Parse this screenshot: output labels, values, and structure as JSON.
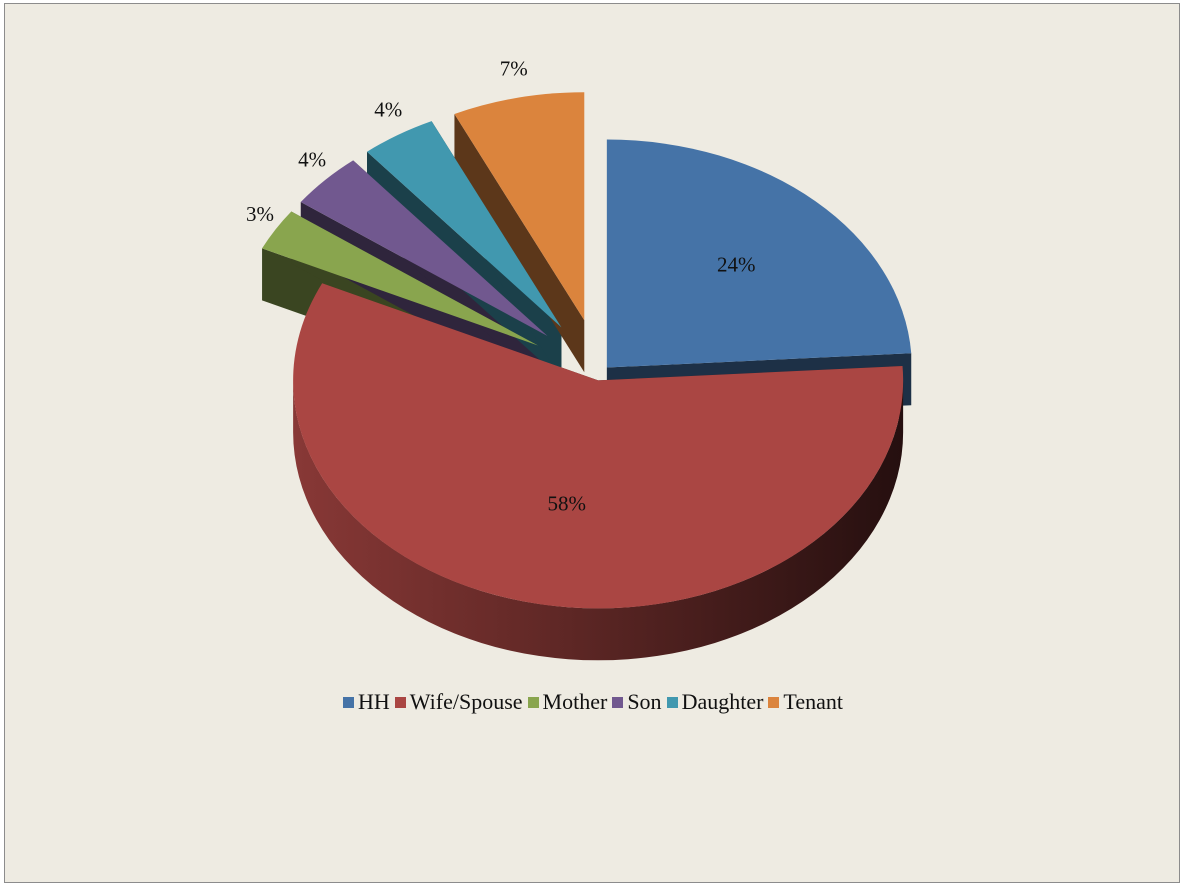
{
  "chart_data": {
    "type": "pie",
    "style": "3d-exploded",
    "title": "",
    "legend_position": "bottom",
    "slices": [
      {
        "label": "HH",
        "value": 24,
        "value_label": "24%",
        "color": "#4573a7"
      },
      {
        "label": "Wife/Spouse",
        "value": 58,
        "value_label": "58%",
        "color": "#aa4643"
      },
      {
        "label": "Mother",
        "value": 3,
        "value_label": "3%",
        "color": "#89a54e"
      },
      {
        "label": "Son",
        "value": 4,
        "value_label": "4%",
        "color": "#71588f"
      },
      {
        "label": "Daughter",
        "value": 4,
        "value_label": "4%",
        "color": "#4198af"
      },
      {
        "label": "Tenant",
        "value": 7,
        "value_label": "7%",
        "color": "#db843d"
      }
    ]
  },
  "colors": {
    "background": "#eeebe2",
    "border": "#8c8c8c"
  }
}
